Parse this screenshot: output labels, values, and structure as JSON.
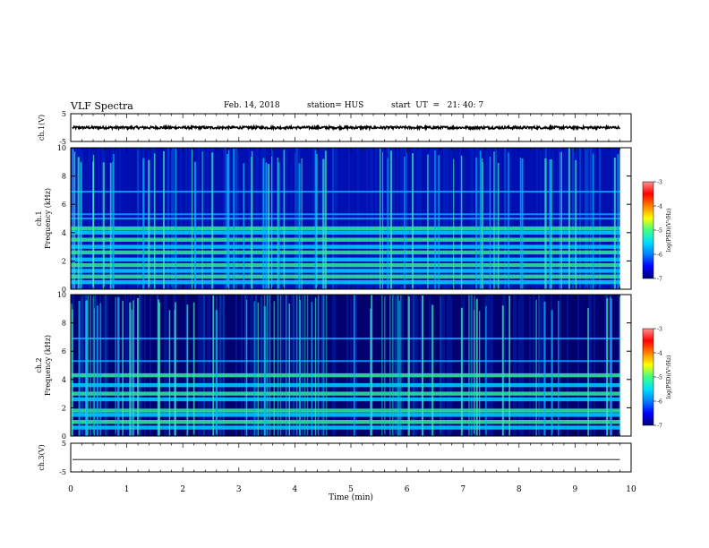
{
  "header": {
    "title": "VLF Spectra",
    "date": "Feb. 14, 2018",
    "station": "station= HUS",
    "start_time": "start  UT  =   21: 40: 7"
  },
  "chart_data": [
    {
      "type": "line",
      "panel": "ch1-waveform",
      "ylabel": "ch.1(V)",
      "ylim": [
        -5,
        5
      ],
      "yticks": [
        "5",
        "-5"
      ],
      "xlim": [
        0,
        10
      ],
      "series": [
        {
          "y_mean": 0,
          "amplitude_approx": 0.3
        }
      ]
    },
    {
      "type": "heatmap",
      "panel": "ch1-spectrogram",
      "ylabel": "ch.1\nFrequency (kHz)",
      "ylim": [
        0,
        10
      ],
      "yticks": [
        "0",
        "2",
        "4",
        "6",
        "8",
        "10"
      ],
      "xlim": [
        0,
        9.8
      ],
      "colorbar": {
        "label": "log(PSD)(V²/Hz)",
        "range": [
          -7,
          -3
        ],
        "ticks": [
          "-3",
          "-4",
          "-5",
          "-6",
          "-7"
        ]
      },
      "bands_khz": [
        0.5,
        0.9,
        1.3,
        1.7,
        2.1,
        2.6,
        3.0,
        3.5,
        4.0,
        4.3,
        5.0,
        5.3,
        6.9
      ]
    },
    {
      "type": "heatmap",
      "panel": "ch2-spectrogram",
      "ylabel": "ch.2\nFrequency (kHz)",
      "ylim": [
        0,
        10
      ],
      "yticks": [
        "0",
        "2",
        "4",
        "6",
        "8",
        "10"
      ],
      "xlim": [
        0,
        9.8
      ],
      "colorbar": {
        "label": "log(PSD)(V²/Hz)",
        "range": [
          -7,
          -3
        ],
        "ticks": [
          "-3",
          "-4",
          "-5",
          "-6",
          "-7"
        ]
      },
      "bands_khz": [
        0.6,
        1.0,
        1.5,
        1.8,
        2.6,
        3.0,
        3.6,
        4.3,
        5.3,
        6.9
      ]
    },
    {
      "type": "line",
      "panel": "ch3-waveform",
      "ylabel": "ch.3(V)",
      "ylim": [
        -5,
        5
      ],
      "yticks": [
        "5",
        "-5"
      ],
      "xlim": [
        0,
        10
      ],
      "series": [
        {
          "y_mean": 0,
          "amplitude_approx": 0
        }
      ]
    }
  ],
  "x_axis": {
    "label": "Time  (min)",
    "ticks": [
      "0",
      "1",
      "2",
      "3",
      "4",
      "5",
      "6",
      "7",
      "8",
      "9",
      "10"
    ]
  },
  "colors": {
    "colormap": [
      "#00007a",
      "#0000ff",
      "#0080ff",
      "#00e0ff",
      "#40ff80",
      "#ffff00",
      "#ff8000",
      "#ff0000",
      "#ff9090"
    ]
  }
}
